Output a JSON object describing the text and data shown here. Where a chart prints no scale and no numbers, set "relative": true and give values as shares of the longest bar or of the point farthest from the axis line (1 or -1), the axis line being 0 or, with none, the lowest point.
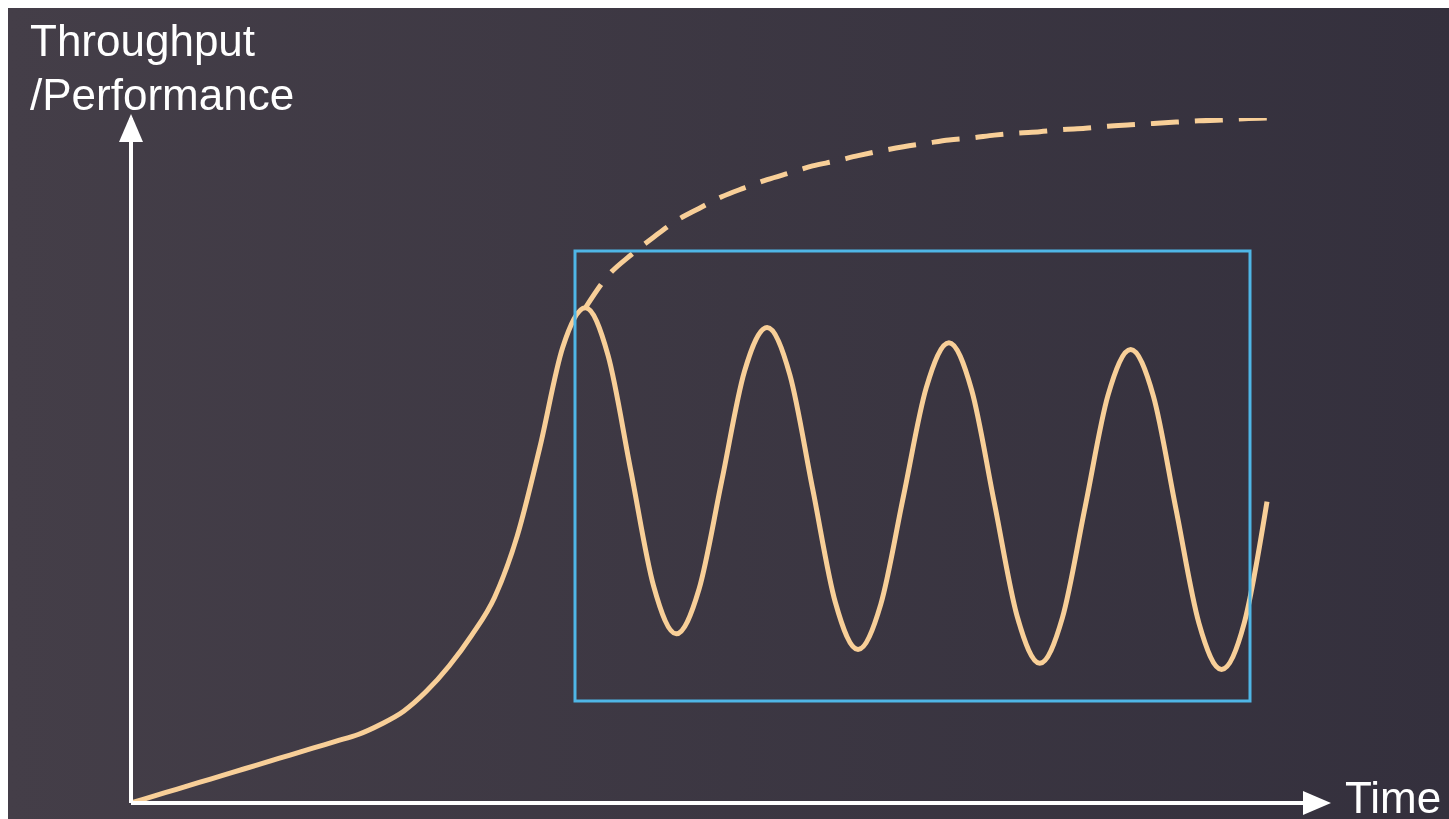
{
  "chart_data": {
    "type": "line",
    "relative": true,
    "ylabel": "Throughput\n/Performance",
    "xlabel": "Time",
    "categories": [
      null,
      null,
      null,
      null,
      null,
      null,
      null,
      null,
      null,
      null,
      null,
      null,
      null,
      null,
      null,
      null,
      null,
      null,
      null,
      null,
      null,
      null,
      null,
      null,
      null,
      null,
      null,
      null,
      null,
      null,
      null,
      null,
      null,
      null,
      null,
      null,
      null,
      null,
      null,
      null,
      null,
      null,
      null,
      null,
      null,
      null,
      null,
      null,
      null,
      null,
      null
    ],
    "series": [
      {
        "color": "#f8cf98",
        "line_style": "solid",
        "values": [
          0,
          0.01,
          0.02,
          0.03,
          0.04,
          0.05,
          0.06,
          0.07,
          0.08,
          0.09,
          0.1,
          0.115,
          0.134,
          0.163,
          0.2,
          0.245,
          0.3,
          0.39,
          0.52,
          0.665,
          0.723,
          0.653,
          0.485,
          0.317,
          0.247,
          0.312,
          0.47,
          0.63,
          0.694,
          0.625,
          0.459,
          0.293,
          0.224,
          0.29,
          0.448,
          0.606,
          0.672,
          0.603,
          0.438,
          0.273,
          0.204,
          0.271,
          0.433,
          0.595,
          0.662,
          0.594,
          0.428,
          0.263,
          0.195,
          0.263,
          0.44
        ]
      },
      {
        "color": "#f8cf98",
        "line_style": "dashed",
        "values": [
          null,
          null,
          null,
          null,
          null,
          null,
          null,
          null,
          null,
          null,
          null,
          null,
          null,
          null,
          null,
          null,
          null,
          null,
          null,
          null,
          0.723,
          0.77,
          0.8,
          0.826,
          0.85,
          0.868,
          0.885,
          0.898,
          0.91,
          0.92,
          0.93,
          0.937,
          0.945,
          0.952,
          0.958,
          0.963,
          0.968,
          0.971,
          0.975,
          0.978,
          0.98,
          0.983,
          0.985,
          0.988,
          0.99,
          0.992,
          0.994,
          0.996,
          0.997,
          0.999,
          1
        ]
      }
    ],
    "grid": false,
    "legend": false,
    "marker": "none"
  }
}
